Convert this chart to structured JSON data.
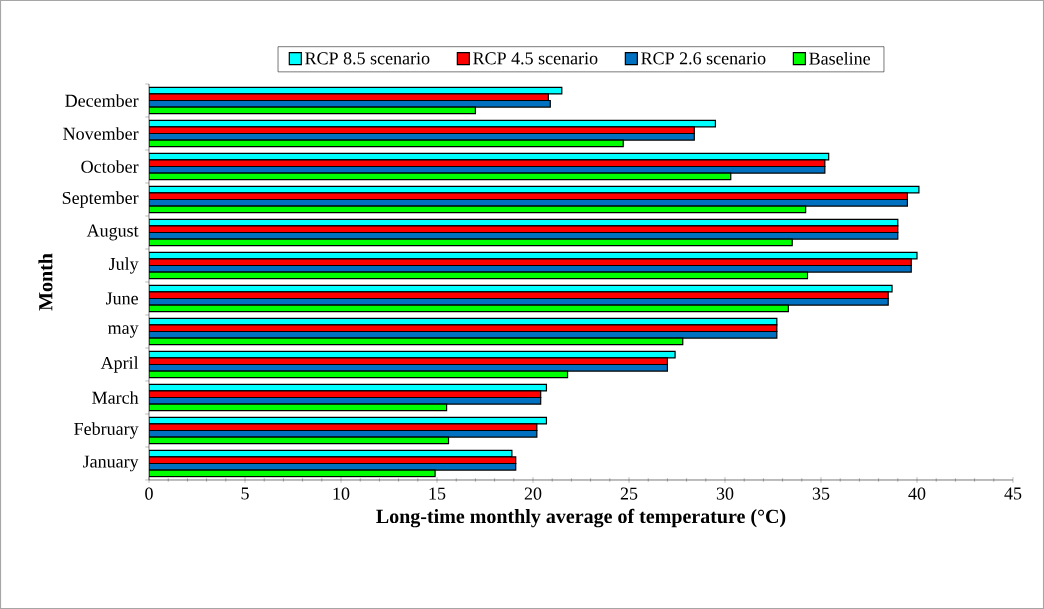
{
  "chart_data": {
    "type": "bar",
    "orientation": "horizontal",
    "xlabel": "Long-time monthly average of temperature (°C)",
    "ylabel": "Month",
    "categories": [
      "December",
      "November",
      "October",
      "September",
      "August",
      "July",
      "June",
      "may",
      "April",
      "March",
      "February",
      "January"
    ],
    "series": [
      {
        "name": "RCP 8.5 scenario",
        "color": "#00ffff",
        "values": [
          21.5,
          29.5,
          35.4,
          40.1,
          39.0,
          40.0,
          38.7,
          32.7,
          27.4,
          20.7,
          20.7,
          18.9
        ]
      },
      {
        "name": "RCP 4.5 scenario",
        "color": "#ff0000",
        "values": [
          20.8,
          28.4,
          35.2,
          39.5,
          39.0,
          39.7,
          38.5,
          32.7,
          27.0,
          20.4,
          20.2,
          19.1
        ]
      },
      {
        "name": "RCP 2.6 scenario",
        "color": "#0070c0",
        "values": [
          20.9,
          28.4,
          35.2,
          39.5,
          39.0,
          39.7,
          38.5,
          32.7,
          27.0,
          20.4,
          20.2,
          19.1
        ]
      },
      {
        "name": "Baseline",
        "color": "#00ff00",
        "values": [
          17.0,
          24.7,
          30.3,
          34.2,
          33.5,
          34.3,
          33.3,
          27.8,
          21.8,
          15.5,
          15.6,
          14.9
        ]
      }
    ],
    "xlim": [
      0,
      45
    ],
    "xticks": [
      0,
      5,
      10,
      15,
      20,
      25,
      30,
      35,
      40,
      45
    ],
    "legend": "top"
  }
}
